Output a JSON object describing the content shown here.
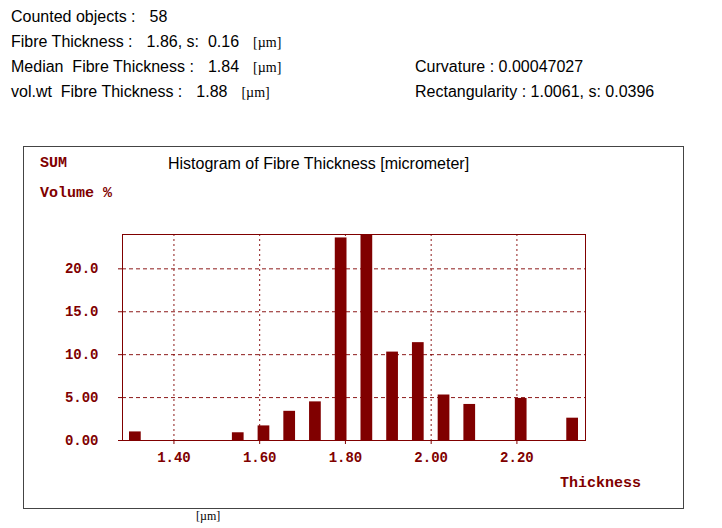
{
  "header": {
    "left": [
      {
        "label": "Counted objects :",
        "value": "58"
      },
      {
        "label": "Fibre Thickness :",
        "value": "1.86, s:  0.16",
        "unit": "[µm]"
      },
      {
        "label": "Median  Fibre Thickness :",
        "value": "1.84",
        "unit": "[µm]"
      },
      {
        "label": "vol.wt  Fibre Thickness :",
        "value": "1.88",
        "unit": "[µm]"
      }
    ],
    "right": [
      {
        "label": "Curvature :",
        "value": "0.00047027"
      },
      {
        "label": "Rectangularity :",
        "value": "1.0061, s: 0.0396"
      }
    ]
  },
  "chart_data": {
    "type": "histogram",
    "title": "Histogram of Fibre Thickness [micrometer]",
    "annotations": [
      "SUM"
    ],
    "y_label": "Volume %",
    "x_label": "Thickness",
    "x_unit": "[µm]",
    "bins": [
      1.28,
      1.34,
      1.4,
      1.46,
      1.52,
      1.58,
      1.64,
      1.7,
      1.76,
      1.82,
      1.88,
      1.94,
      2.0,
      2.06,
      2.12,
      2.18,
      2.24,
      2.3,
      2.36
    ],
    "values": [
      1.0,
      0,
      0,
      0,
      0.9,
      1.7,
      3.4,
      4.5,
      23.6,
      24.0,
      10.3,
      11.4,
      5.3,
      4.2,
      0,
      4.9,
      0,
      2.6
    ],
    "color": "#800000",
    "xlim": [
      1.28,
      2.36
    ],
    "xticks": [
      {
        "value": 1.4,
        "label": "1.40"
      },
      {
        "value": 1.6,
        "label": "1.60"
      },
      {
        "value": 1.8,
        "label": "1.80"
      },
      {
        "value": 2.0,
        "label": "2.00"
      },
      {
        "value": 2.2,
        "label": "2.20"
      }
    ],
    "ylim": [
      0,
      24
    ],
    "yticks": [
      {
        "value": 0,
        "label": "0.00"
      },
      {
        "value": 5,
        "label": "5.00"
      },
      {
        "value": 10,
        "label": "10.0"
      },
      {
        "value": 15,
        "label": "15.0"
      },
      {
        "value": 20,
        "label": "20.0"
      }
    ],
    "grid": true
  }
}
